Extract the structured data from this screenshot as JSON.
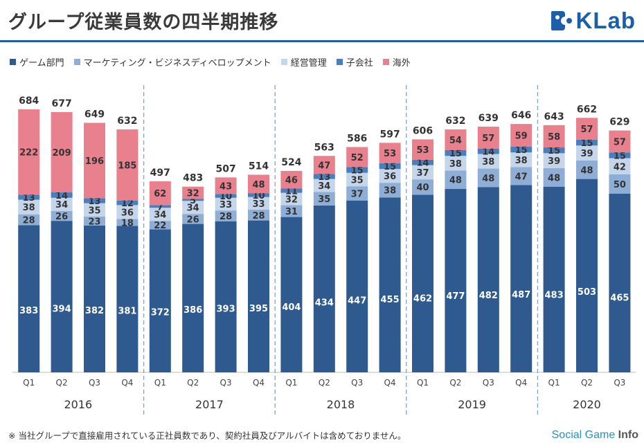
{
  "header": {
    "title": "グループ従業員数の四半期推移",
    "logo_text": "KLab"
  },
  "colors": {
    "game": "#2e5a8f",
    "marketing": "#8faed6",
    "management": "#c5d5ea",
    "subsidiary": "#4a7fbf",
    "overseas": "#e8808e",
    "accent": "#1b5faa"
  },
  "chart_data": {
    "type": "bar",
    "stacked": true,
    "ylim": [
      0,
      700
    ],
    "legend_position": "top-left",
    "quarters": [
      "Q1",
      "Q2",
      "Q3",
      "Q4",
      "Q1",
      "Q2",
      "Q3",
      "Q4",
      "Q1",
      "Q2",
      "Q3",
      "Q4",
      "Q1",
      "Q2",
      "Q3",
      "Q4",
      "Q1",
      "Q2",
      "Q3"
    ],
    "years": [
      {
        "label": "2016",
        "count": 4
      },
      {
        "label": "2017",
        "count": 4
      },
      {
        "label": "2018",
        "count": 4
      },
      {
        "label": "2019",
        "count": 4
      },
      {
        "label": "2020",
        "count": 3
      }
    ],
    "totals": [
      684,
      677,
      649,
      632,
      497,
      483,
      507,
      514,
      524,
      563,
      586,
      597,
      606,
      632,
      639,
      646,
      643,
      662,
      629
    ],
    "series": [
      {
        "key": "game",
        "name": "ゲーム部門",
        "values": [
          383,
          394,
          382,
          381,
          372,
          386,
          393,
          395,
          404,
          434,
          447,
          455,
          462,
          477,
          482,
          487,
          483,
          503,
          465
        ]
      },
      {
        "key": "marketing",
        "name": "マーケティング・ビジネスディベロップメント",
        "values": [
          28,
          26,
          23,
          18,
          22,
          26,
          28,
          28,
          31,
          35,
          37,
          38,
          40,
          48,
          48,
          47,
          48,
          48,
          50
        ]
      },
      {
        "key": "management",
        "name": "経営管理",
        "values": [
          38,
          34,
          35,
          36,
          34,
          34,
          33,
          33,
          32,
          34,
          35,
          36,
          37,
          38,
          38,
          38,
          39,
          39,
          42
        ]
      },
      {
        "key": "subsidiary",
        "name": "子会社",
        "values": [
          13,
          14,
          13,
          12,
          7,
          5,
          10,
          10,
          11,
          13,
          15,
          15,
          14,
          15,
          14,
          15,
          15,
          15,
          15
        ]
      },
      {
        "key": "overseas",
        "name": "海外",
        "values": [
          222,
          209,
          196,
          185,
          62,
          32,
          43,
          48,
          46,
          47,
          52,
          53,
          53,
          54,
          57,
          59,
          58,
          57,
          57
        ]
      }
    ]
  },
  "footnote": "※ 当社グループで直接雇用されている正社員数であり、契約社員及びアルバイトは含めておりません。",
  "watermark": {
    "text1": "Social Game ",
    "text2": "Info"
  }
}
